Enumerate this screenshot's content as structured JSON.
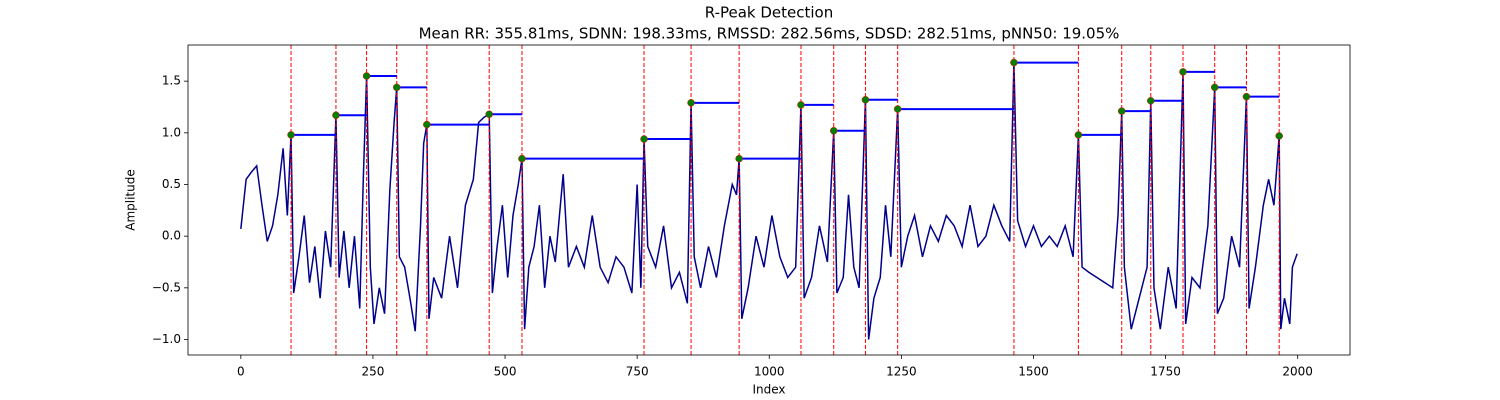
{
  "chart_data": {
    "type": "line",
    "title": "R-Peak Detection",
    "subtitle": "Mean RR: 355.81ms, SDNN: 198.33ms, RMSSD: 282.56ms, SDSD: 282.51ms, pNN50: 19.05%",
    "x_label": "Index",
    "y_label": "Amplitude",
    "xlim": [
      -100,
      2099
    ],
    "ylim": [
      -1.15,
      1.85
    ],
    "xticks": [
      0,
      250,
      500,
      750,
      1000,
      1250,
      1500,
      1750,
      2000
    ],
    "yticks": [
      {
        "value": -1,
        "label": "−1.0"
      },
      {
        "value": -0.5,
        "label": "−0.5"
      },
      {
        "value": 0,
        "label": "0.0"
      },
      0.5,
      {
        "value": 1,
        "label": "1.0"
      },
      1.5
    ],
    "signal": {
      "color": "#00008b",
      "x": [
        0,
        10,
        20,
        30,
        40,
        50,
        60,
        70,
        80,
        88,
        95,
        100,
        110,
        120,
        130,
        140,
        150,
        160,
        170,
        180,
        186,
        195,
        205,
        215,
        225,
        232,
        238,
        245,
        252,
        262,
        272,
        282,
        290,
        295,
        300,
        310,
        320,
        330,
        340,
        346,
        352,
        356,
        365,
        380,
        395,
        410,
        425,
        440,
        450,
        460,
        470,
        476,
        485,
        495,
        505,
        515,
        525,
        532,
        537,
        545,
        555,
        565,
        575,
        585,
        595,
        610,
        620,
        635,
        650,
        665,
        680,
        695,
        710,
        725,
        740,
        750,
        757,
        763,
        770,
        785,
        800,
        815,
        830,
        845,
        852,
        858,
        870,
        885,
        900,
        915,
        930,
        938,
        943,
        948,
        960,
        975,
        990,
        1005,
        1020,
        1035,
        1050,
        1060,
        1066,
        1080,
        1095,
        1110,
        1122,
        1128,
        1140,
        1150,
        1160,
        1170,
        1182,
        1188,
        1198,
        1210,
        1220,
        1230,
        1243,
        1250,
        1262,
        1275,
        1290,
        1305,
        1320,
        1335,
        1350,
        1365,
        1380,
        1395,
        1410,
        1425,
        1440,
        1455,
        1463,
        1470,
        1485,
        1500,
        1515,
        1530,
        1545,
        1560,
        1575,
        1585,
        1592,
        1605,
        1620,
        1635,
        1650,
        1660,
        1667,
        1672,
        1685,
        1700,
        1715,
        1722,
        1728,
        1740,
        1755,
        1770,
        1783,
        1788,
        1800,
        1815,
        1830,
        1843,
        1848,
        1860,
        1875,
        1890,
        1903,
        1908,
        1920,
        1935,
        1945,
        1955,
        1965,
        1968,
        1975,
        1985,
        1990,
        1999
      ],
      "values": [
        0.07,
        0.55,
        0.62,
        0.68,
        0.3,
        -0.05,
        0.1,
        0.4,
        0.85,
        0.2,
        0.98,
        -0.55,
        -0.2,
        0.2,
        -0.45,
        -0.1,
        -0.6,
        0.05,
        -0.3,
        1.17,
        -0.4,
        0.05,
        -0.5,
        0.0,
        -0.7,
        0.6,
        1.55,
        -0.3,
        -0.85,
        -0.5,
        -0.75,
        0.45,
        1.1,
        1.44,
        -0.2,
        -0.3,
        -0.6,
        -0.92,
        0.1,
        0.9,
        1.08,
        -0.8,
        -0.4,
        -0.6,
        0.0,
        -0.5,
        0.3,
        0.55,
        1.1,
        1.15,
        1.18,
        -0.55,
        -0.1,
        0.3,
        -0.4,
        0.2,
        0.5,
        0.75,
        -0.9,
        -0.3,
        -0.1,
        0.3,
        -0.5,
        0.0,
        -0.25,
        0.6,
        -0.3,
        -0.1,
        -0.3,
        0.2,
        -0.3,
        -0.45,
        -0.2,
        -0.3,
        -0.55,
        0.5,
        -0.5,
        0.94,
        -0.1,
        -0.3,
        0.1,
        -0.5,
        -0.35,
        -0.65,
        1.29,
        -0.2,
        -0.5,
        -0.1,
        -0.4,
        0.1,
        0.5,
        0.4,
        0.75,
        -0.8,
        -0.5,
        0.0,
        -0.3,
        0.2,
        -0.2,
        -0.4,
        -0.3,
        1.27,
        -0.6,
        -0.4,
        0.1,
        -0.25,
        1.02,
        -0.55,
        -0.4,
        0.4,
        -0.3,
        -0.5,
        1.32,
        -1.0,
        -0.6,
        -0.4,
        0.3,
        -0.2,
        1.23,
        -0.3,
        0.0,
        0.2,
        -0.2,
        0.1,
        -0.05,
        0.2,
        0.1,
        -0.1,
        0.3,
        -0.1,
        0.0,
        0.3,
        0.1,
        -0.05,
        1.68,
        0.15,
        -0.1,
        0.1,
        -0.1,
        0.0,
        -0.1,
        0.1,
        -0.2,
        0.98,
        -0.3,
        -0.35,
        -0.4,
        -0.45,
        -0.5,
        0.2,
        1.21,
        -0.3,
        -0.9,
        -0.6,
        -0.3,
        1.31,
        -0.5,
        -0.9,
        -0.3,
        -0.7,
        1.59,
        -0.85,
        -0.4,
        -0.5,
        0.1,
        1.44,
        -0.75,
        -0.6,
        0.0,
        -0.3,
        1.35,
        -0.7,
        -0.3,
        0.3,
        0.55,
        0.3,
        0.97,
        -0.9,
        -0.6,
        -0.85,
        -0.3,
        -0.17
      ]
    },
    "peaks": {
      "color": "green",
      "x": [
        95,
        180,
        238,
        295,
        352,
        470,
        532,
        763,
        852,
        943,
        1060,
        1122,
        1182,
        1243,
        1463,
        1585,
        1667,
        1722,
        1783,
        1843,
        1903,
        1965
      ],
      "values": [
        0.98,
        1.17,
        1.55,
        1.44,
        1.08,
        1.18,
        0.75,
        0.94,
        1.29,
        0.75,
        1.27,
        1.02,
        1.32,
        1.23,
        1.68,
        0.98,
        1.21,
        1.31,
        1.59,
        1.44,
        1.35,
        0.97
      ]
    },
    "rr_color": "blue",
    "vline_color": "red"
  }
}
